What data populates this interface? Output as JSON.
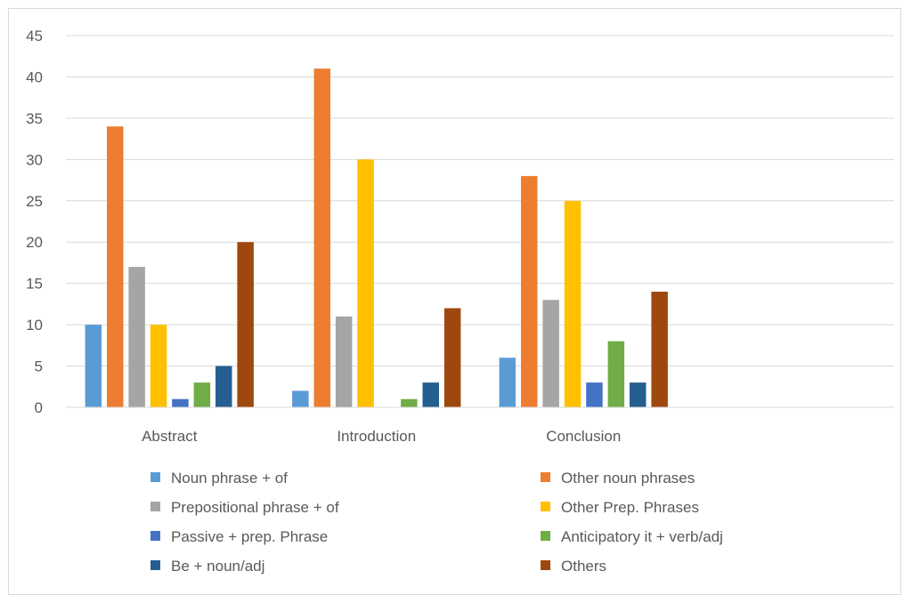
{
  "chart_data": {
    "type": "bar",
    "title": "",
    "xlabel": "",
    "ylabel": "",
    "ylim": [
      0,
      45
    ],
    "yticks": [
      0,
      5,
      10,
      15,
      20,
      25,
      30,
      35,
      40,
      45
    ],
    "grid": true,
    "legend_position": "bottom",
    "categories": [
      "Abstract",
      "Introduction",
      "Conclusion",
      ""
    ],
    "series": [
      {
        "name": "Noun phrase + of",
        "color": "#5b9bd5",
        "values": [
          10,
          2,
          6,
          null
        ]
      },
      {
        "name": "Other noun phrases",
        "color": "#ed7d31",
        "values": [
          34,
          41,
          28,
          null
        ]
      },
      {
        "name": "Prepositional phrase + of",
        "color": "#a5a5a5",
        "values": [
          17,
          11,
          13,
          null
        ]
      },
      {
        "name": "Other Prep. Phrases",
        "color": "#ffc000",
        "values": [
          10,
          30,
          25,
          null
        ]
      },
      {
        "name": "Passive + prep. Phrase",
        "color": "#4472c4",
        "values": [
          1,
          0,
          3,
          null
        ]
      },
      {
        "name": "Anticipatory it + verb/adj",
        "color": "#70ad47",
        "values": [
          3,
          1,
          8,
          null
        ]
      },
      {
        "name": "Be + noun/adj",
        "color": "#255e91",
        "values": [
          5,
          3,
          3,
          null
        ]
      },
      {
        "name": "Others",
        "color": "#9e480e",
        "values": [
          20,
          12,
          14,
          null
        ]
      }
    ]
  }
}
